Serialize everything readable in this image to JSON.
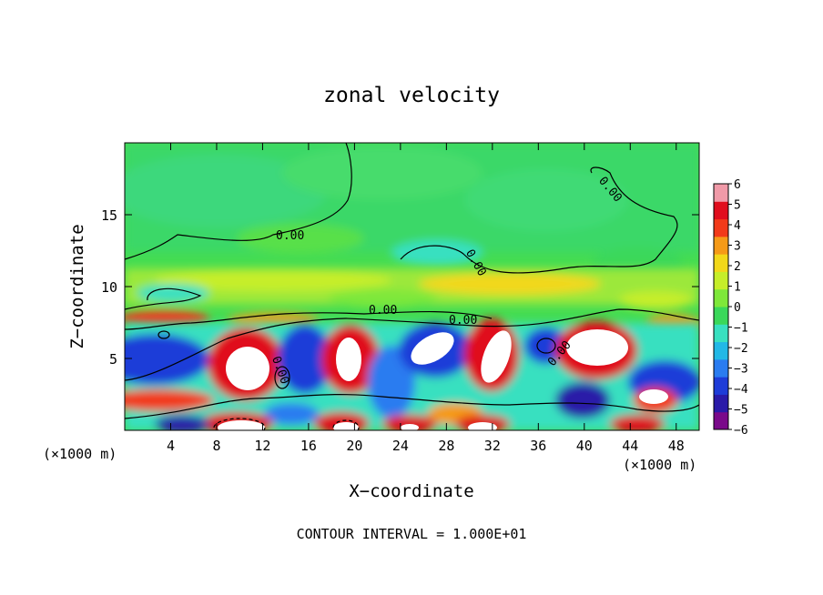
{
  "chart_data": {
    "type": "heatmap",
    "title": "zonal velocity",
    "xlabel": "X−coordinate",
    "ylabel": "Z−coordinate",
    "x_units": "(×1000 m)",
    "y_units": "(×1000 m)",
    "xlim": [
      0,
      50
    ],
    "ylim": [
      0,
      20
    ],
    "x_ticks": [
      4,
      8,
      12,
      16,
      20,
      24,
      28,
      32,
      36,
      40,
      44,
      48
    ],
    "y_ticks": [
      5,
      10,
      15
    ],
    "colorbar": {
      "min": -6,
      "max": 6,
      "ticks": [
        6,
        5,
        4,
        3,
        2,
        1,
        0,
        -1,
        -2,
        -3,
        -4,
        -5,
        -6
      ],
      "colors": [
        "#7a0a8a",
        "#2a1aa8",
        "#1e3cd8",
        "#2a7cf0",
        "#22b8e6",
        "#38e0c0",
        "#3ad85a",
        "#7ee83a",
        "#c6ee2a",
        "#f2d81a",
        "#f59a18",
        "#f23a1a",
        "#e00e1e",
        "#f09aa8"
      ]
    },
    "contour_label": "0.00",
    "footer": "CONTOUR INTERVAL = 1.000E+01"
  }
}
